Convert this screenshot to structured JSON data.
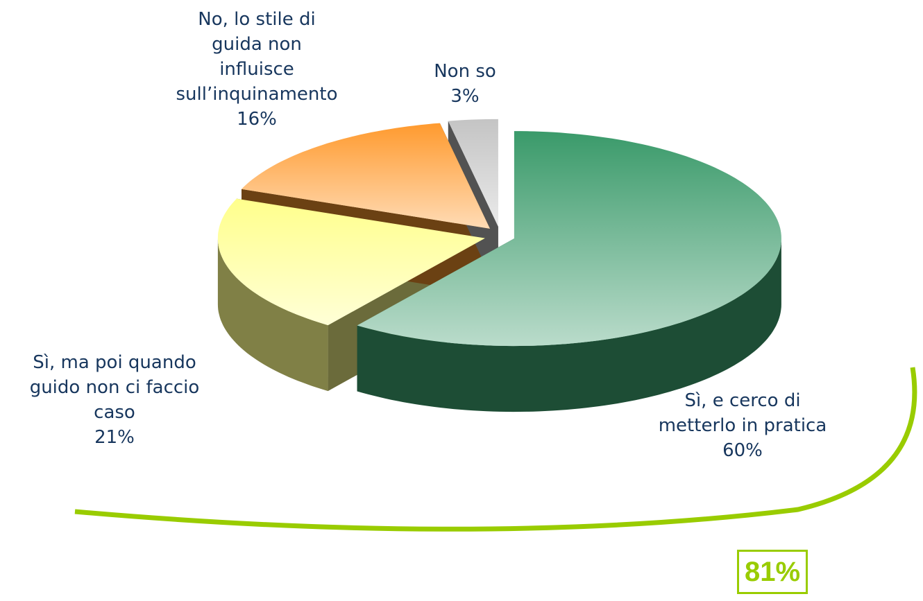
{
  "chart_data": {
    "type": "pie",
    "categories": [
      "Sì, e cerco di metterlo in pratica",
      "Sì, ma poi quando guido non ci faccio caso",
      "No, lo stile di guida non influisce sull’inquinamento",
      "Non so"
    ],
    "values": [
      60,
      21,
      16,
      3
    ],
    "value_labels": [
      "60%",
      "21%",
      "16%",
      "3%"
    ],
    "colors": [
      "#3a9a6a",
      "#ffff8c",
      "#ff9a2e",
      "#c4c4c4"
    ],
    "annotation": "81%"
  }
}
